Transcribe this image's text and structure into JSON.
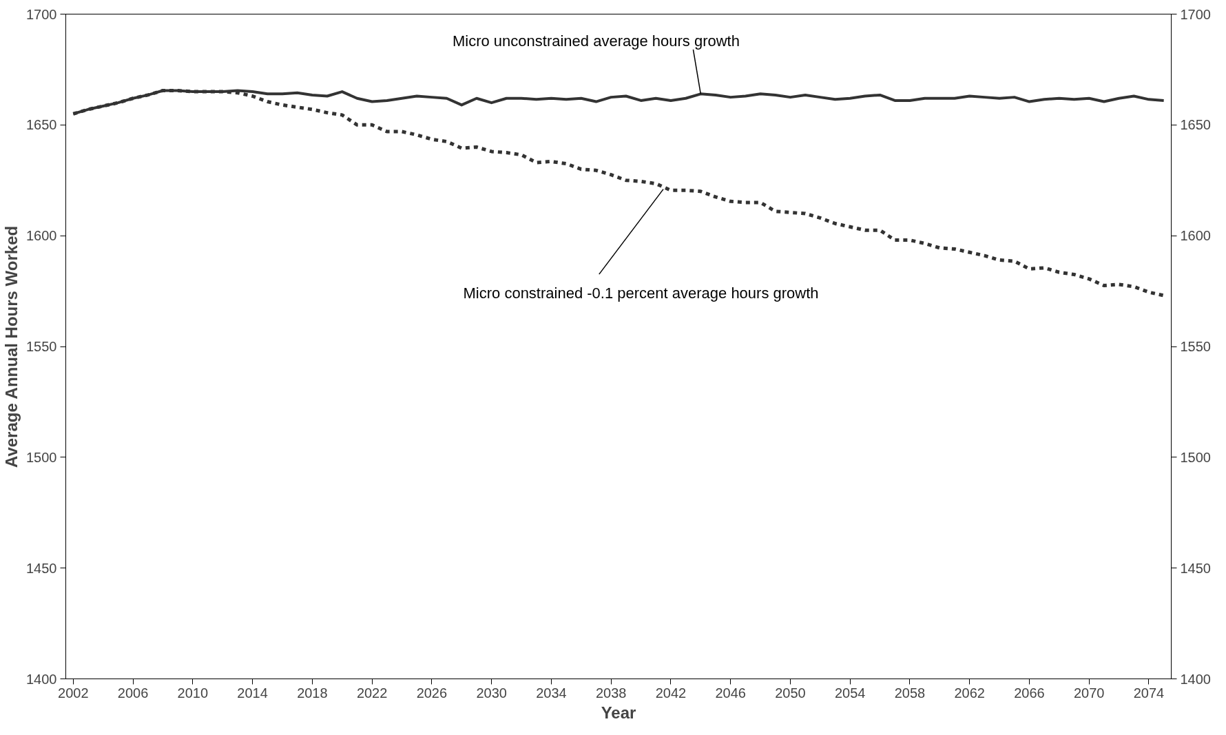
{
  "chart_data": {
    "type": "line",
    "xlabel": "Year",
    "ylabel": "Average Annual Hours Worked",
    "x": [
      2002,
      2003,
      2004,
      2005,
      2006,
      2007,
      2008,
      2009,
      2010,
      2011,
      2012,
      2013,
      2014,
      2015,
      2016,
      2017,
      2018,
      2019,
      2020,
      2021,
      2022,
      2023,
      2024,
      2025,
      2026,
      2027,
      2028,
      2029,
      2030,
      2031,
      2032,
      2033,
      2034,
      2035,
      2036,
      2037,
      2038,
      2039,
      2040,
      2041,
      2042,
      2043,
      2044,
      2045,
      2046,
      2047,
      2048,
      2049,
      2050,
      2051,
      2052,
      2053,
      2054,
      2055,
      2056,
      2057,
      2058,
      2059,
      2060,
      2061,
      2062,
      2063,
      2064,
      2065,
      2066,
      2067,
      2068,
      2069,
      2070,
      2071,
      2072,
      2073,
      2074,
      2075
    ],
    "series": [
      {
        "color": "#333333",
        "line_style": "solid",
        "values": [
          1655,
          1657,
          1658.5,
          1660,
          1662,
          1663.5,
          1665.5,
          1665.5,
          1665,
          1665,
          1665,
          1665.5,
          1665,
          1664,
          1664,
          1664.5,
          1663.5,
          1663,
          1665,
          1662,
          1660.5,
          1661,
          1662,
          1663,
          1662.5,
          1662,
          1659,
          1662,
          1660,
          1662,
          1662,
          1661.5,
          1662,
          1661.5,
          1662,
          1660.5,
          1662.5,
          1663,
          1661,
          1662,
          1661,
          1662,
          1664,
          1663.5,
          1662.5,
          1663,
          1664,
          1663.5,
          1662.5,
          1663.5,
          1662.5,
          1661.5,
          1662,
          1663,
          1663.5,
          1661,
          1661,
          1662,
          1662,
          1662,
          1663,
          1662.5,
          1662,
          1662.5,
          1660.5,
          1661.5,
          1662,
          1661.5,
          1662,
          1660.5,
          1662,
          1663,
          1661.5,
          1661
        ]
      },
      {
        "color": "#333333",
        "line_style": "dashed",
        "values": [
          1655,
          1657,
          1658.5,
          1660,
          1662,
          1663.5,
          1665.5,
          1665.5,
          1665,
          1665,
          1665,
          1664.5,
          1663,
          1660.5,
          1659,
          1658,
          1657,
          1655.5,
          1654.5,
          1650,
          1650,
          1647,
          1647,
          1645.5,
          1643.5,
          1642.5,
          1639.5,
          1640,
          1638,
          1637.5,
          1636.5,
          1633,
          1633.5,
          1632.5,
          1630,
          1629.5,
          1627.5,
          1625,
          1624.5,
          1623.5,
          1620.5,
          1620.5,
          1620,
          1617.5,
          1615.5,
          1615,
          1615,
          1611,
          1610.5,
          1610,
          1608,
          1605.5,
          1604,
          1602.5,
          1602.5,
          1598,
          1598,
          1596.5,
          1594.5,
          1594,
          1592.5,
          1591,
          1589,
          1588.5,
          1585,
          1585.5,
          1583.5,
          1582.5,
          1580.5,
          1577.5,
          1578,
          1577,
          1574.5,
          1573
        ]
      }
    ],
    "xlim": [
      2001.5,
      2075.5
    ],
    "xticks": [
      2002,
      2006,
      2010,
      2014,
      2018,
      2022,
      2026,
      2030,
      2034,
      2038,
      2042,
      2046,
      2050,
      2054,
      2058,
      2062,
      2066,
      2070,
      2074
    ],
    "ylim": [
      1400,
      1700
    ],
    "yticks": [
      1400,
      1450,
      1500,
      1550,
      1600,
      1650,
      1700
    ],
    "y2lim": [
      1400,
      1700
    ],
    "y2ticks": [
      1400,
      1450,
      1500,
      1550,
      1600,
      1650,
      1700
    ],
    "annotations": [
      {
        "text": "Micro unconstrained average hours growth",
        "x": 2044,
        "y": 1664
      },
      {
        "text": "Micro constrained -0.1 percent average hours growth",
        "x": 2041.5,
        "y": 1621
      }
    ],
    "grid": false,
    "marker": "none"
  }
}
